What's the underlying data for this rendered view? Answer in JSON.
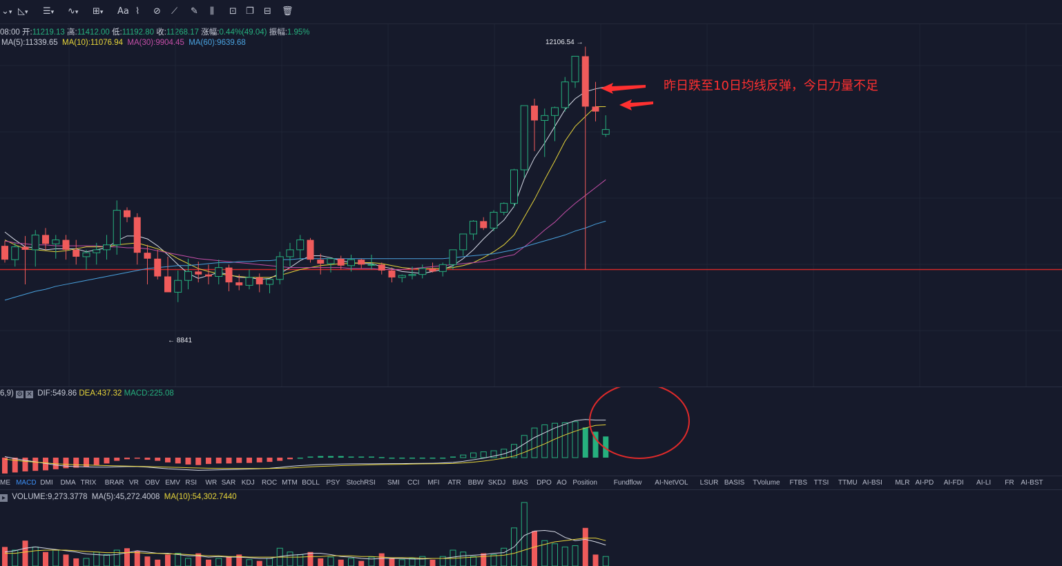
{
  "toolbar": {
    "icons": [
      "cursor-icon",
      "trend-line-icon",
      "horizontal-lines-icon",
      "wave-icon",
      "measure-icon",
      "text-icon",
      "pattern-icon",
      "brush-icon",
      "ruler-icon",
      "pencil-icon",
      "fib-icon",
      "lock-icon",
      "copy-icon",
      "screenshot-icon",
      "trash-icon"
    ],
    "text_tool_label": "Aa"
  },
  "ohlc": {
    "time_label": "08:00",
    "open_label": "开:",
    "open": "11219.13",
    "high_label": "高:",
    "high": "11412.00",
    "low_label": "低:",
    "low": "11192.80",
    "close_label": "收:",
    "close": "11268.17",
    "change_label": "涨幅:",
    "change": "0.44%(49.04)",
    "amp_label": "振幅:",
    "amp": "1.95%"
  },
  "ma": {
    "ma5": "MA(5):11339.65",
    "ma10": "MA(10):11076.94",
    "ma30": "MA(30):9904.45",
    "ma60": "MA(60):9639.68"
  },
  "markers": {
    "high_marker": "12106.54 →",
    "low_marker": "← 8841"
  },
  "annotation": "昨日跌至10日均线反弹，今日力量不足",
  "macd": {
    "params": "6,9)",
    "dif": "DIF:549.86",
    "dea": "DEA:437.32",
    "macd": "MACD:225.08"
  },
  "indicator_tabs": [
    "ME",
    "MACD",
    "DMI",
    "DMA",
    "TRIX",
    "BRAR",
    "VR",
    "OBV",
    "EMV",
    "RSI",
    "WR",
    "SAR",
    "KDJ",
    "ROC",
    "MTM",
    "BOLL",
    "PSY",
    "StochRSI",
    "SMI",
    "CCI",
    "MFI",
    "ATR",
    "BBW",
    "SKDJ",
    "BIAS",
    "DPO",
    "AO",
    "Position",
    "Fundflow",
    "AI-NetVOL",
    "LSUR",
    "BASIS",
    "TVolume",
    "FTBS",
    "TTSI",
    "TTMU",
    "AI-BSI",
    "MLR",
    "AI-PD",
    "AI-FDI",
    "AI-LI",
    "FR",
    "AI-BST"
  ],
  "active_tab": "MACD",
  "volume": {
    "vol": "VOLUME:9,273.3778",
    "ma5": "MA(5):45,272.4008",
    "ma10": "MA(10):54,302.7440"
  },
  "colors": {
    "up": "#26b07e",
    "down": "#ef5b5b",
    "bg": "#161a2b",
    "ma5": "#d8dce8",
    "ma10": "#e8d63a",
    "ma30": "#c54fa8",
    "ma60": "#4aa3e0",
    "annotation": "#ff3030"
  },
  "chart_data": [
    {
      "type": "candlestick",
      "title": "",
      "y_range": [
        8700,
        12300
      ],
      "horizontal_line": 9850,
      "candles": [
        [
          10090,
          10140,
          9920,
          9950
        ],
        [
          9950,
          10120,
          9880,
          10080
        ],
        [
          10080,
          10190,
          9700,
          10050
        ],
        [
          10050,
          10250,
          9880,
          10200
        ],
        [
          10200,
          10270,
          10050,
          10110
        ],
        [
          10110,
          10200,
          9960,
          10150
        ],
        [
          10150,
          10200,
          9950,
          10050
        ],
        [
          10050,
          10150,
          9900,
          9980
        ],
        [
          9980,
          10050,
          9850,
          10020
        ],
        [
          10020,
          10120,
          9900,
          10050
        ],
        [
          10050,
          10200,
          9950,
          10100
        ],
        [
          10100,
          10550,
          10000,
          10450
        ],
        [
          10450,
          10480,
          10330,
          10380
        ],
        [
          10380,
          10420,
          9900,
          10020
        ],
        [
          10020,
          10100,
          9700,
          9960
        ],
        [
          9960,
          10050,
          9750,
          9780
        ],
        [
          9780,
          9980,
          9650,
          9620
        ],
        [
          9620,
          9840,
          9520,
          9740
        ],
        [
          9740,
          9960,
          9650,
          9830
        ],
        [
          9830,
          9930,
          9720,
          9800
        ],
        [
          9800,
          9900,
          9700,
          9780
        ],
        [
          9780,
          9950,
          9700,
          9870
        ],
        [
          9870,
          9900,
          9630,
          9720
        ],
        [
          9720,
          9800,
          9640,
          9690
        ],
        [
          9690,
          9850,
          9650,
          9770
        ],
        [
          9770,
          9810,
          9620,
          9700
        ],
        [
          9700,
          9740,
          9610,
          9750
        ],
        [
          9750,
          10030,
          9700,
          9980
        ],
        [
          9980,
          10120,
          9880,
          10050
        ],
        [
          10050,
          10200,
          9950,
          10150
        ],
        [
          10150,
          10170,
          9920,
          9950
        ],
        [
          9950,
          10010,
          9800,
          9910
        ],
        [
          9910,
          9970,
          9820,
          9960
        ],
        [
          9960,
          9990,
          9850,
          9890
        ],
        [
          9890,
          10000,
          9830,
          9950
        ],
        [
          9950,
          9960,
          9860,
          9900
        ],
        [
          9900,
          10000,
          9850,
          9900
        ],
        [
          9900,
          9920,
          9800,
          9840
        ],
        [
          9840,
          9870,
          9720,
          9770
        ],
        [
          9770,
          9800,
          9720,
          9790
        ],
        [
          9790,
          9880,
          9750,
          9800
        ],
        [
          9800,
          9900,
          9760,
          9860
        ],
        [
          9860,
          9920,
          9820,
          9830
        ],
        [
          9830,
          9920,
          9780,
          9900
        ],
        [
          9900,
          10050,
          9850,
          10050
        ],
        [
          10050,
          10200,
          9990,
          10210
        ],
        [
          10210,
          10350,
          10150,
          10340
        ],
        [
          10340,
          10380,
          10250,
          10270
        ],
        [
          10270,
          10450,
          10240,
          10430
        ],
        [
          10430,
          10530,
          10400,
          10520
        ],
        [
          10520,
          10870,
          10480,
          10860
        ],
        [
          10860,
          11500,
          10780,
          11510
        ],
        [
          11510,
          11580,
          11050,
          11360
        ],
        [
          11360,
          11480,
          10990,
          11410
        ],
        [
          11410,
          11500,
          11150,
          11490
        ],
        [
          11490,
          11800,
          11450,
          11750
        ],
        [
          11750,
          12000,
          11690,
          12010
        ],
        [
          12010,
          12106.54,
          9850,
          11500
        ],
        [
          11500,
          11750,
          11350,
          11450
        ],
        [
          11219.13,
          11412,
          11192.8,
          11268.17
        ]
      ],
      "series": [
        {
          "name": "MA(5)",
          "values": [
            10230,
            10150,
            10080,
            10070,
            10050,
            10060,
            10060,
            10060,
            10030,
            10050,
            10070,
            10140,
            10190,
            10190,
            10160,
            10090,
            10000,
            9900,
            9810,
            9760,
            9790,
            9820,
            9800,
            9770,
            9770,
            9750,
            9760,
            9810,
            9870,
            9940,
            9990,
            9990,
            9970,
            9940,
            9920,
            9910,
            9910,
            9880,
            9860,
            9830,
            9820,
            9810,
            9830,
            9850,
            9890,
            9960,
            10050,
            10160,
            10260,
            10350,
            10490,
            10770,
            10980,
            11130,
            11300,
            11470,
            11580,
            11650,
            11680,
            11700
          ]
        },
        {
          "name": "MA(10)",
          "values": [
            10150,
            10100,
            10060,
            10050,
            10040,
            10030,
            10040,
            10060,
            10080,
            10080,
            10080,
            10100,
            10110,
            10120,
            10090,
            10060,
            10020,
            9960,
            9910,
            9860,
            9830,
            9810,
            9790,
            9780,
            9770,
            9770,
            9770,
            9790,
            9820,
            9850,
            9870,
            9890,
            9900,
            9910,
            9910,
            9920,
            9920,
            9910,
            9890,
            9870,
            9860,
            9860,
            9860,
            9860,
            9870,
            9890,
            9920,
            9970,
            10030,
            10100,
            10200,
            10380,
            10560,
            10760,
            10950,
            11150,
            11300,
            11400,
            11500,
            11500
          ]
        },
        {
          "name": "MA(30)",
          "values": [
            10140,
            10120,
            10110,
            10100,
            10100,
            10090,
            10090,
            10090,
            10090,
            10090,
            10080,
            10080,
            10070,
            10070,
            10060,
            10040,
            10020,
            10000,
            9980,
            9960,
            9950,
            9940,
            9930,
            9920,
            9910,
            9900,
            9890,
            9880,
            9870,
            9870,
            9870,
            9870,
            9870,
            9870,
            9860,
            9860,
            9860,
            9850,
            9850,
            9850,
            9860,
            9870,
            9880,
            9890,
            9900,
            9910,
            9920,
            9930,
            9950,
            9980,
            10000,
            10080,
            10160,
            10250,
            10330,
            10430,
            10520,
            10600,
            10680,
            10760
          ]
        },
        {
          "name": "MA(60)",
          "values": [
            9540,
            9570,
            9600,
            9630,
            9650,
            9680,
            9700,
            9720,
            9740,
            9760,
            9780,
            9800,
            9820,
            9840,
            9860,
            9870,
            9880,
            9890,
            9890,
            9900,
            9910,
            9920,
            9920,
            9930,
            9930,
            9940,
            9940,
            9950,
            9950,
            9960,
            9960,
            9960,
            9960,
            9960,
            9960,
            9960,
            9960,
            9960,
            9960,
            9960,
            9960,
            9960,
            9960,
            9960,
            9970,
            9980,
            9990,
            10000,
            10010,
            10030,
            10050,
            10080,
            10110,
            10140,
            10170,
            10200,
            10240,
            10270,
            10310,
            10340
          ]
        }
      ]
    },
    {
      "type": "bar",
      "title": "MACD",
      "y_range": [
        -300,
        1200
      ],
      "histogram": [
        -300,
        -280,
        -260,
        -250,
        -240,
        -220,
        -200,
        -190,
        -170,
        -140,
        -110,
        -60,
        -30,
        -20,
        -40,
        -60,
        -90,
        -110,
        -130,
        -140,
        -120,
        -110,
        -110,
        -100,
        -100,
        -90,
        -80,
        -60,
        -30,
        0,
        20,
        30,
        30,
        30,
        20,
        20,
        20,
        10,
        0,
        0,
        0,
        0,
        0,
        0,
        20,
        50,
        90,
        110,
        130,
        160,
        250,
        420,
        560,
        620,
        650,
        660,
        680,
        570,
        490,
        400
      ],
      "series": [
        {
          "name": "DIF",
          "values": [
            20,
            -20,
            -50,
            -80,
            -110,
            -140,
            -160,
            -170,
            -175,
            -180,
            -180,
            -175,
            -170,
            -170,
            -180,
            -195,
            -210,
            -220,
            -230,
            -240,
            -235,
            -230,
            -225,
            -220,
            -215,
            -210,
            -200,
            -185,
            -165,
            -150,
            -140,
            -130,
            -125,
            -120,
            -118,
            -116,
            -115,
            -114,
            -113,
            -112,
            -110,
            -108,
            -106,
            -100,
            -90,
            -70,
            -40,
            -10,
            30,
            70,
            140,
            260,
            380,
            470,
            560,
            630,
            700,
            720,
            710,
            710
          ]
        },
        {
          "name": "DEA",
          "values": [
            -30,
            -50,
            -70,
            -85,
            -100,
            -115,
            -125,
            -135,
            -140,
            -145,
            -150,
            -155,
            -160,
            -165,
            -170,
            -175,
            -180,
            -185,
            -190,
            -195,
            -200,
            -202,
            -204,
            -205,
            -205,
            -205,
            -205,
            -200,
            -195,
            -185,
            -175,
            -165,
            -158,
            -150,
            -145,
            -140,
            -135,
            -130,
            -128,
            -125,
            -120,
            -118,
            -116,
            -114,
            -110,
            -100,
            -85,
            -65,
            -40,
            -10,
            30,
            100,
            180,
            260,
            350,
            430,
            500,
            560,
            610,
            620
          ]
        }
      ]
    },
    {
      "type": "bar",
      "title": "VOLUME",
      "values": [
        30,
        25,
        40,
        30,
        22,
        25,
        18,
        12,
        12,
        22,
        18,
        25,
        28,
        24,
        15,
        10,
        18,
        20,
        12,
        20,
        10,
        12,
        15,
        18,
        10,
        8,
        12,
        28,
        22,
        18,
        22,
        12,
        14,
        10,
        12,
        8,
        14,
        20,
        12,
        10,
        12,
        15,
        10,
        15,
        25,
        22,
        15,
        20,
        18,
        28,
        60,
        100,
        55,
        40,
        35,
        30,
        32,
        60,
        18,
        15
      ],
      "series": [
        {
          "name": "MA(5)",
          "values": [
            22,
            24,
            28,
            30,
            28,
            26,
            24,
            22,
            19,
            18,
            17,
            18,
            21,
            24,
            22,
            20,
            20,
            18,
            16,
            16,
            14,
            15,
            14,
            14,
            13,
            12,
            12,
            15,
            17,
            18,
            20,
            20,
            18,
            15,
            14,
            12,
            11,
            12,
            12,
            12,
            11,
            11,
            12,
            12,
            14,
            16,
            17,
            18,
            20,
            21,
            30,
            48,
            55,
            56,
            54,
            45,
            40,
            42,
            38,
            33
          ]
        },
        {
          "name": "MA(10)",
          "values": [
            20,
            20,
            22,
            24,
            25,
            25,
            25,
            24,
            23,
            22,
            21,
            21,
            21,
            21,
            20,
            20,
            19,
            19,
            18,
            17,
            16,
            16,
            15,
            15,
            14,
            14,
            14,
            14,
            14,
            14,
            15,
            15,
            16,
            16,
            16,
            15,
            15,
            14,
            13,
            13,
            13,
            12,
            12,
            12,
            12,
            13,
            14,
            15,
            16,
            17,
            20,
            25,
            30,
            34,
            38,
            40,
            42,
            44,
            44,
            40
          ]
        }
      ]
    }
  ]
}
